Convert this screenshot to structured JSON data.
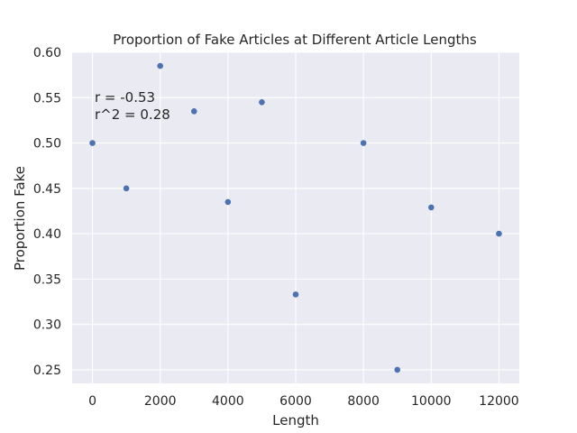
{
  "chart_data": {
    "type": "scatter",
    "title": "Proportion of Fake Articles at Different Article Lengths",
    "xlabel": "Length",
    "ylabel": "Proportion Fake",
    "xlim": [
      -600,
      12600
    ],
    "ylim": [
      0.235,
      0.6
    ],
    "xticks": [
      0,
      2000,
      4000,
      6000,
      8000,
      10000,
      12000
    ],
    "xtick_labels": [
      "0",
      "2000",
      "4000",
      "6000",
      "8000",
      "10000",
      "12000"
    ],
    "yticks": [
      0.25,
      0.3,
      0.35,
      0.4,
      0.45,
      0.5,
      0.55,
      0.6
    ],
    "ytick_labels": [
      "0.25",
      "0.30",
      "0.35",
      "0.40",
      "0.45",
      "0.50",
      "0.55",
      "0.60"
    ],
    "grid": true,
    "background_color": "#eaeaf2",
    "grid_color": "#ffffff",
    "point_color": "#4c72b0",
    "x": [
      0,
      1000,
      2000,
      3000,
      4000,
      5000,
      6000,
      8000,
      9000,
      10000,
      12000
    ],
    "y": [
      0.5,
      0.45,
      0.585,
      0.535,
      0.435,
      0.545,
      0.333,
      0.5,
      0.25,
      0.429,
      0.4
    ],
    "annotations": [
      "r = -0.53",
      "r^2 = 0.28"
    ]
  }
}
